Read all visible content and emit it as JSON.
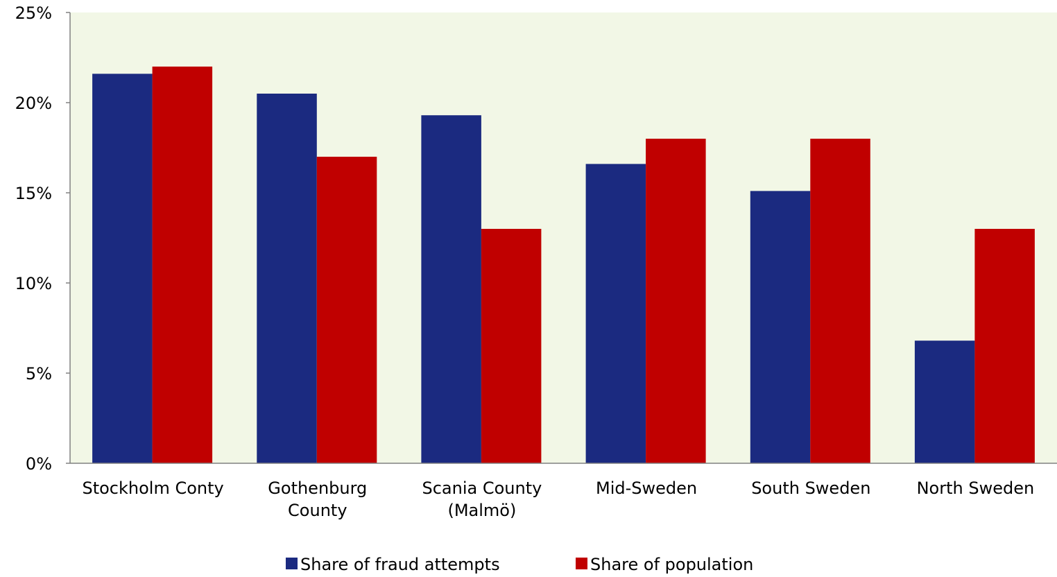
{
  "chart_data": {
    "type": "bar",
    "categories": [
      [
        "Stockholm Conty"
      ],
      [
        "Gothenburg",
        "County"
      ],
      [
        "Scania County",
        "(Malmö)"
      ],
      [
        "Mid-Sweden"
      ],
      [
        "South Sweden"
      ],
      [
        "North Sweden"
      ]
    ],
    "series": [
      {
        "name": "Share of fraud attempts",
        "color": "#1b2a80",
        "values": [
          21.6,
          20.5,
          19.3,
          16.6,
          15.1,
          6.8
        ]
      },
      {
        "name": "Share of population",
        "color": "#c00000",
        "values": [
          22.0,
          17.0,
          13.0,
          18.0,
          18.0,
          13.0
        ]
      }
    ],
    "ylim": [
      0,
      25
    ],
    "yticks": [
      0,
      5,
      10,
      15,
      20,
      25
    ],
    "ytick_labels": [
      "0%",
      "5%",
      "10%",
      "15%",
      "20%",
      "25%"
    ],
    "plot_background": "#f2f7e6",
    "axis_color": "#808080",
    "grid": false,
    "legend_position": "bottom-center"
  }
}
